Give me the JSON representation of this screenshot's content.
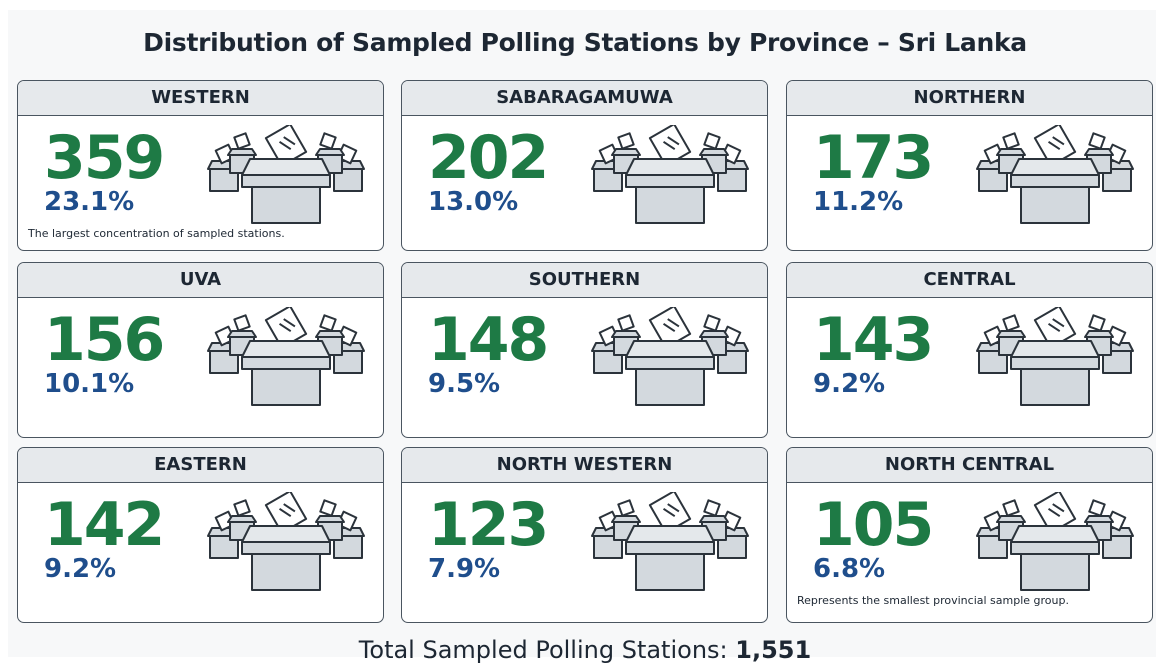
{
  "title": "Distribution of Sampled Polling Stations by Province – Sri Lanka",
  "cards": [
    {
      "name": "WESTERN",
      "count": "359",
      "percent": "23.1%",
      "note": "The largest concentration of sampled stations."
    },
    {
      "name": "SABARAGAMUWA",
      "count": "202",
      "percent": "13.0%"
    },
    {
      "name": "NORTHERN",
      "count": "173",
      "percent": "11.2%"
    },
    {
      "name": "UVA",
      "count": "156",
      "percent": "10.1%"
    },
    {
      "name": "SOUTHERN",
      "count": "148",
      "percent": "9.5%"
    },
    {
      "name": "CENTRAL",
      "count": "143",
      "percent": "9.2%"
    },
    {
      "name": "EASTERN",
      "count": "142",
      "percent": "9.2%"
    },
    {
      "name": "NORTH WESTERN",
      "count": "123",
      "percent": "7.9%"
    },
    {
      "name": "NORTH CENTRAL",
      "count": "105",
      "percent": "6.8%",
      "note": "Represents the smallest provincial sample group."
    }
  ],
  "footer": {
    "label": "Total Sampled Polling Stations:",
    "total": "1,551"
  }
}
